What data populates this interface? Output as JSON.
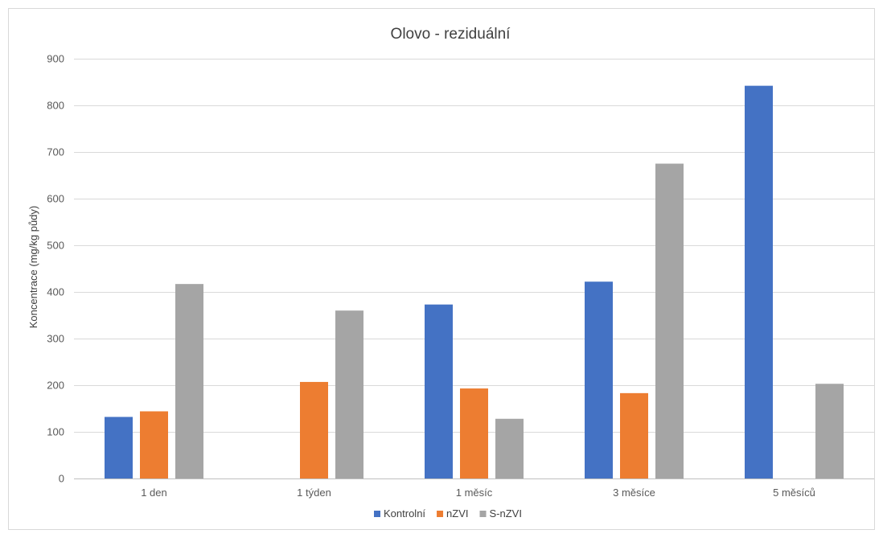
{
  "chart_data": {
    "type": "bar",
    "title": "Olovo - reziduální",
    "xlabel": "",
    "ylabel": "Koncentrace (mg/kg půdy)",
    "ylim": [
      0,
      900
    ],
    "yticks": [
      0,
      100,
      200,
      300,
      400,
      500,
      600,
      700,
      800,
      900
    ],
    "categories": [
      "1 den",
      "1 týden",
      "1 měsíc",
      "3 měsíce",
      "5 měsíců"
    ],
    "series": [
      {
        "name": "Kontrolní",
        "color": "#4472C4",
        "values": [
          132,
          null,
          373,
          422,
          842
        ]
      },
      {
        "name": "nZVI",
        "color": "#ED7D31",
        "values": [
          144,
          207,
          193,
          183,
          null
        ]
      },
      {
        "name": "S-nZVI",
        "color": "#A5A5A5",
        "values": [
          417,
          360,
          128,
          675,
          203
        ]
      }
    ],
    "grid": true,
    "legend_position": "bottom"
  }
}
